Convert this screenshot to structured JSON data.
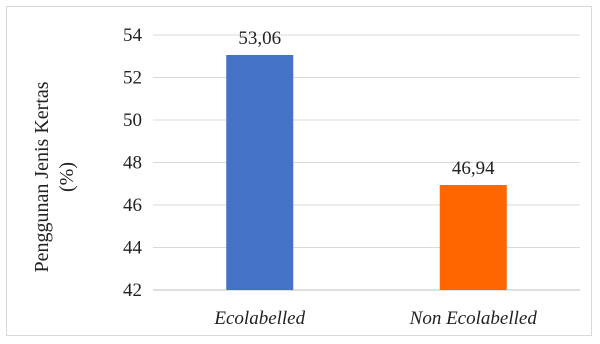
{
  "chart_data": {
    "type": "bar",
    "categories": [
      "Ecolabelled",
      "Non Ecolabelled"
    ],
    "values": [
      53.06,
      46.94
    ],
    "value_labels": [
      "53,06",
      "46,94"
    ],
    "colors": [
      "#4472C4",
      "#FF6600"
    ],
    "title": "",
    "xlabel": "",
    "ylabel_line1": "Penggunan Jenis Kertas",
    "ylabel_line2": "(%)",
    "ylim": [
      42,
      54
    ],
    "y_ticks": [
      42,
      44,
      46,
      48,
      50,
      52,
      54
    ],
    "grid": true,
    "legend": "none"
  }
}
